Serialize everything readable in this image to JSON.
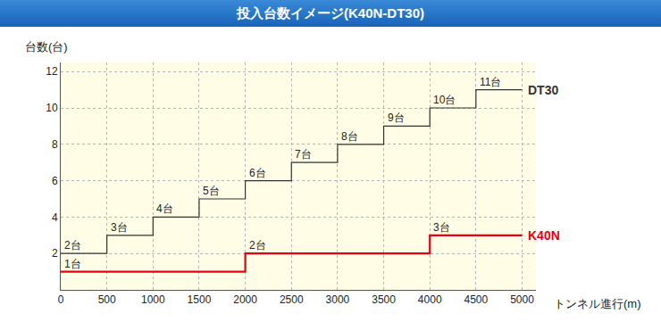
{
  "chart_data": {
    "type": "line",
    "title": "投入台数イメージ(K40N-DT30)",
    "x_label": "トンネル進行(m)",
    "y_label": "台数(台)",
    "xlim": [
      0,
      5150
    ],
    "xticks": [
      0,
      500,
      1000,
      1500,
      2000,
      2500,
      3000,
      3500,
      4000,
      4500,
      5000
    ],
    "ylim": [
      0,
      12.5
    ],
    "yticks": [
      2,
      4,
      6,
      8,
      10,
      12
    ],
    "grid": true,
    "data_labels": true,
    "line_style": "step",
    "series": [
      {
        "name": "DT30",
        "color": "#333333",
        "x": [
          0,
          500,
          1000,
          1500,
          2000,
          2500,
          3000,
          3500,
          4000,
          4500,
          5000
        ],
        "values": [
          2,
          3,
          4,
          5,
          6,
          7,
          8,
          9,
          10,
          11,
          11
        ],
        "value_labels": [
          "2台",
          "3台",
          "4台",
          "5台",
          "6台",
          "7台",
          "8台",
          "9台",
          "10台",
          "11台",
          null
        ]
      },
      {
        "name": "K40N",
        "color": "#e60012",
        "x": [
          0,
          2000,
          4000,
          5000
        ],
        "values": [
          1,
          2,
          3,
          3
        ],
        "value_labels": [
          "1台",
          "2台",
          "3台",
          null
        ]
      }
    ]
  }
}
